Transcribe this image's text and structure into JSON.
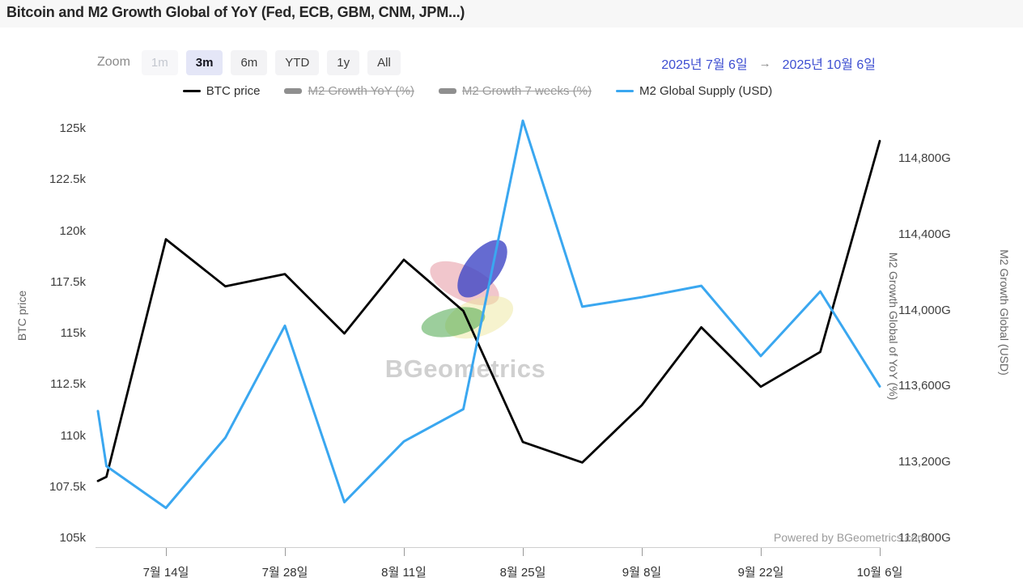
{
  "title": "Bitcoin and M2 Growth Global of YoY (Fed, ECB, GBM, CNM, JPM...)",
  "toolbar": {
    "zoom_label": "Zoom",
    "buttons": [
      {
        "label": "1m",
        "state": "disabled"
      },
      {
        "label": "3m",
        "state": "active"
      },
      {
        "label": "6m",
        "state": "normal"
      },
      {
        "label": "YTD",
        "state": "normal"
      },
      {
        "label": "1y",
        "state": "normal"
      },
      {
        "label": "All",
        "state": "normal"
      }
    ]
  },
  "date_range": {
    "from": "2025년 7월 6일",
    "arrow": "→",
    "to": "2025년 10월 6일"
  },
  "legend": [
    {
      "label": "BTC price",
      "swatch": "line",
      "color": "#000000",
      "disabled": false
    },
    {
      "label": "M2 Growth YoY (%)",
      "swatch": "bar",
      "color": "#8f8f8f",
      "disabled": true
    },
    {
      "label": "M2 Growth 7 weeks (%)",
      "swatch": "bar",
      "color": "#8f8f8f",
      "disabled": true
    },
    {
      "label": "M2 Global Supply (USD)",
      "swatch": "line",
      "color": "#3aa7f0",
      "disabled": false
    }
  ],
  "watermark": {
    "text": "BGeometrics"
  },
  "powered_by": "Powered by BGeometrics.com",
  "chart_data": {
    "type": "line",
    "x": [
      "2025-07-06",
      "2025-07-07",
      "2025-07-14",
      "2025-07-21",
      "2025-07-28",
      "2025-08-04",
      "2025-08-11",
      "2025-08-18",
      "2025-08-25",
      "2025-09-01",
      "2025-09-08",
      "2025-09-15",
      "2025-09-22",
      "2025-09-29",
      "2025-10-06"
    ],
    "series": [
      {
        "name": "BTC price",
        "axis": "left",
        "color": "#000000",
        "values": [
          107800,
          108000,
          119600,
          117300,
          117900,
          115000,
          118600,
          116100,
          109700,
          108700,
          111500,
          115300,
          112400,
          114100,
          124400
        ]
      },
      {
        "name": "M2 Global Supply (USD)",
        "axis": "right",
        "color": "#3aa7f0",
        "values": [
          113470,
          113180,
          112960,
          113330,
          113920,
          112990,
          113310,
          113480,
          115000,
          114020,
          114070,
          114130,
          113760,
          114100,
          113600
        ]
      }
    ],
    "disabled_series": [
      "M2 Growth YoY (%)",
      "M2 Growth 7 weeks (%)"
    ],
    "left_axis": {
      "title": "BTC price",
      "min": 105000,
      "max": 125000,
      "tick_labels": [
        "125k",
        "122.5k",
        "120k",
        "117.5k",
        "115k",
        "112.5k",
        "110k",
        "107.5k",
        "105k"
      ],
      "tick_values": [
        125000,
        122500,
        120000,
        117500,
        115000,
        112500,
        110000,
        107500,
        105000
      ]
    },
    "right_axis": {
      "titles": [
        "M2 Growth Global of YoY (%)",
        "M2 Growth Global (USD)"
      ],
      "min": 112800,
      "max": 114800,
      "tick_labels": [
        "114,800G",
        "114,400G",
        "114,000G",
        "113,600G",
        "113,200G",
        "112,800G"
      ],
      "tick_values": [
        114800,
        114400,
        114000,
        113600,
        113200,
        112800
      ]
    },
    "x_axis": {
      "tick_labels": [
        "7월 14일",
        "7월 28일",
        "8월 11일",
        "8월 25일",
        "9월 8일",
        "9월 22일",
        "10월 6일"
      ],
      "tick_dates": [
        "2025-07-14",
        "2025-07-28",
        "2025-08-11",
        "2025-08-25",
        "2025-09-08",
        "2025-09-22",
        "2025-10-06"
      ]
    },
    "legend_position": "top",
    "grid": false
  }
}
